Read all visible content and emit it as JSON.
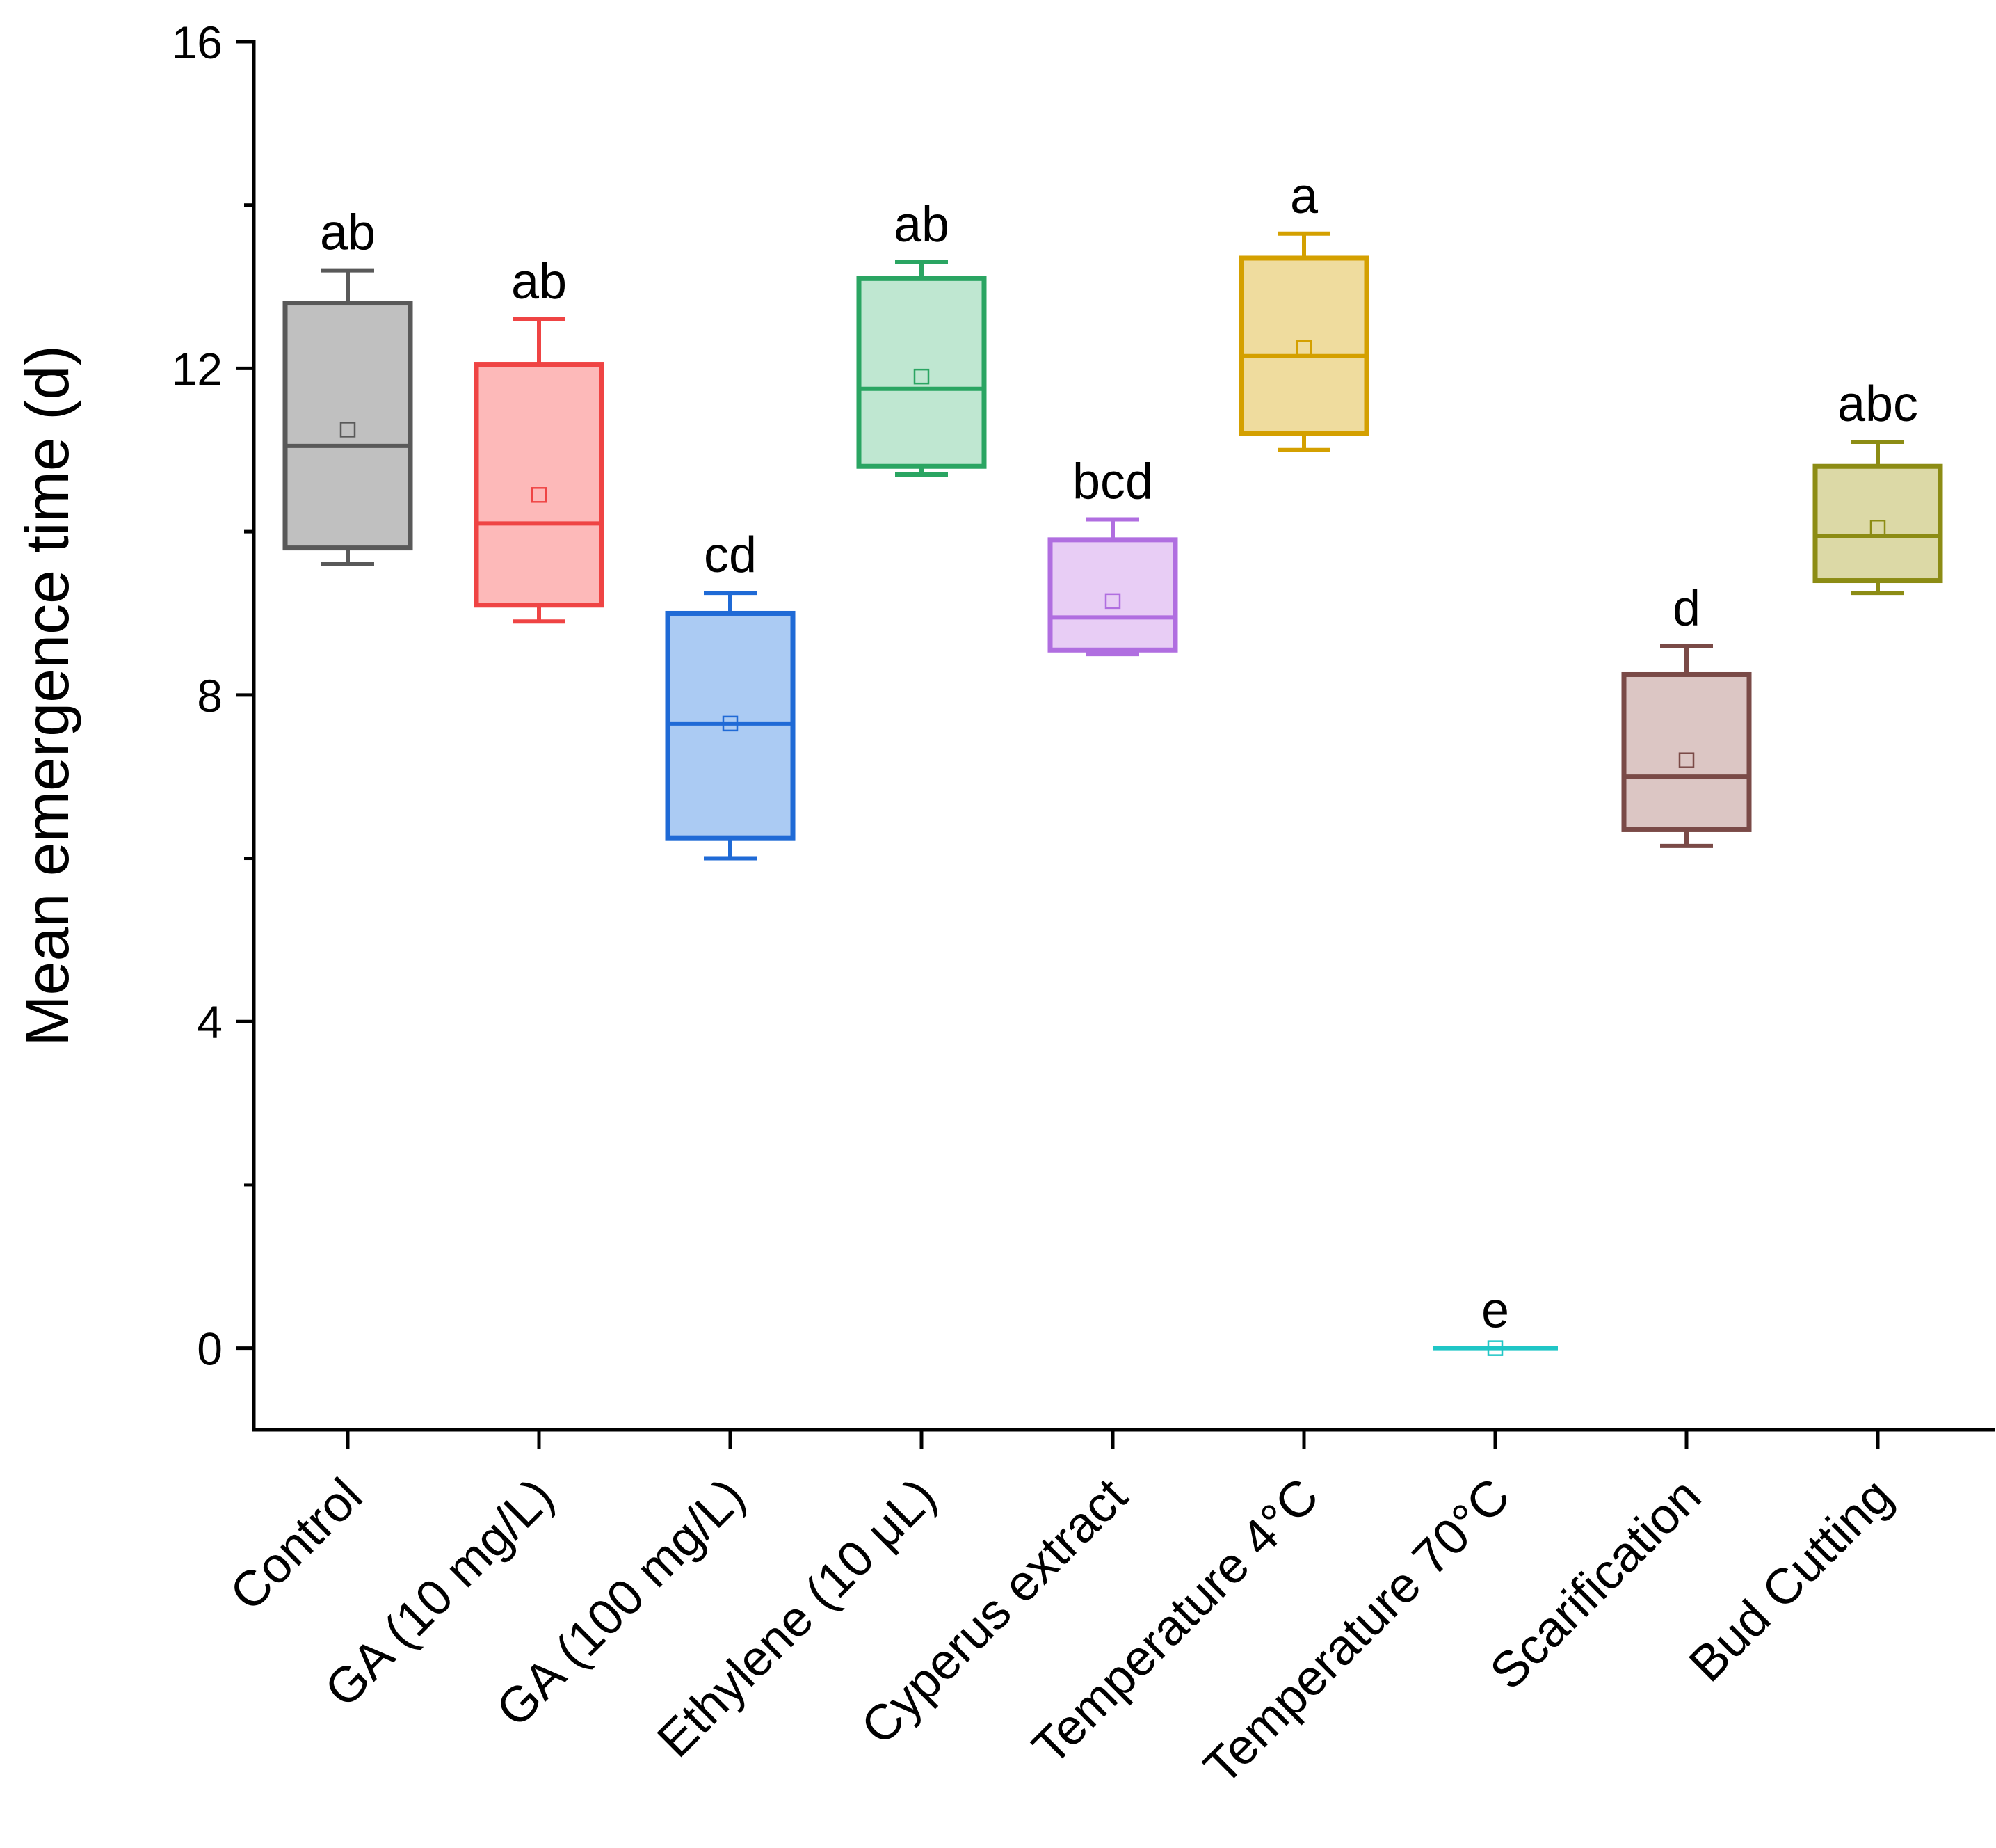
{
  "chart_data": {
    "type": "box",
    "title": "",
    "xlabel": "",
    "ylabel": "Mean emergence time (d)",
    "ylim": [
      -1,
      16
    ],
    "yticks": [
      0,
      4,
      8,
      12,
      16
    ],
    "yticks_minor": [
      2,
      6,
      10,
      14
    ],
    "categories": [
      "Control",
      "GA (10 mg/L)",
      "GA (100 mg/L)",
      "Ethylene (10 μL)",
      "Cyperus extract",
      "Temperature 4°C",
      "Temperature 70°C",
      "Scarification",
      "Bud Cutting"
    ],
    "series": [
      {
        "name": "Control",
        "color": "#595959",
        "fill": "#c0c0c0",
        "whisker_low": 9.6,
        "q1": 9.8,
        "median": 11.05,
        "q3": 12.8,
        "whisker_high": 13.2,
        "mean": 11.25,
        "letter": "ab"
      },
      {
        "name": "GA (10 mg/L)",
        "color": "#ef4444",
        "fill": "#fdb9b9",
        "whisker_low": 8.9,
        "q1": 9.1,
        "median": 10.1,
        "q3": 12.05,
        "whisker_high": 12.6,
        "mean": 10.45,
        "letter": "ab"
      },
      {
        "name": "GA (100 mg/L)",
        "color": "#1f6ad6",
        "fill": "#abcbf3",
        "whisker_low": 6.0,
        "q1": 6.25,
        "median": 7.65,
        "q3": 9.0,
        "whisker_high": 9.25,
        "mean": 7.65,
        "letter": "cd"
      },
      {
        "name": "Ethylene (10 μL)",
        "color": "#2aa562",
        "fill": "#bfe7d1",
        "whisker_low": 10.7,
        "q1": 10.8,
        "median": 11.75,
        "q3": 13.1,
        "whisker_high": 13.3,
        "mean": 11.9,
        "letter": "ab"
      },
      {
        "name": "Cyperus extract",
        "color": "#b06ee0",
        "fill": "#e8cdf5",
        "whisker_low": 8.5,
        "q1": 8.55,
        "median": 8.95,
        "q3": 9.9,
        "whisker_high": 10.15,
        "mean": 9.15,
        "letter": "bcd"
      },
      {
        "name": "Temperature 4°C",
        "color": "#d4a000",
        "fill": "#efdc9e",
        "whisker_low": 11.0,
        "q1": 11.2,
        "median": 12.15,
        "q3": 13.35,
        "whisker_high": 13.65,
        "mean": 12.25,
        "letter": "a"
      },
      {
        "name": "Temperature 70°C",
        "color": "#20c6c6",
        "fill": "#bdeeee",
        "whisker_low": 0,
        "q1": 0,
        "median": 0,
        "q3": 0,
        "whisker_high": 0,
        "mean": 0,
        "letter": "e"
      },
      {
        "name": "Scarification",
        "color": "#7a4a47",
        "fill": "#dcc6c4",
        "whisker_low": 6.15,
        "q1": 6.35,
        "median": 7.0,
        "q3": 8.25,
        "whisker_high": 8.6,
        "mean": 7.2,
        "letter": "d"
      },
      {
        "name": "Bud Cutting",
        "color": "#8c8c14",
        "fill": "#dcd9a6",
        "whisker_low": 9.25,
        "q1": 9.4,
        "median": 9.95,
        "q3": 10.8,
        "whisker_high": 11.1,
        "mean": 10.05,
        "letter": "abc"
      }
    ]
  }
}
